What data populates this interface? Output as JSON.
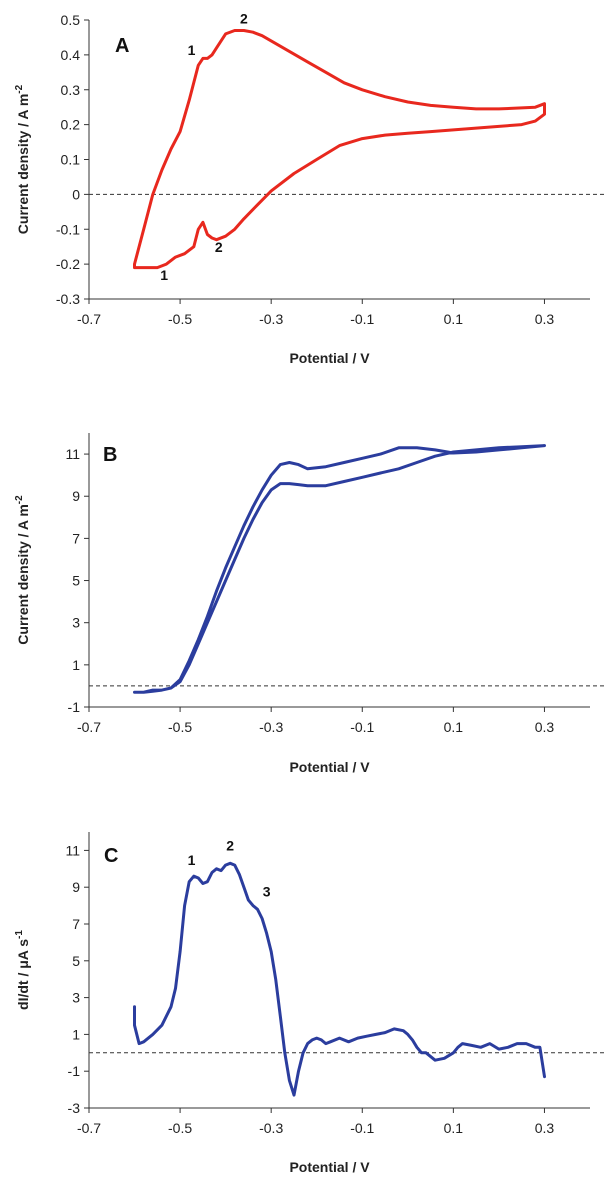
{
  "chart_data": [
    {
      "id": "A",
      "type": "line",
      "panel_label": "A",
      "xlabel": "Potential / V",
      "ylabel": "Current density / A m",
      "ylabel_sup": "-2",
      "xlim": [
        -0.7,
        0.4
      ],
      "ylim": [
        -0.3,
        0.5
      ],
      "xticks": [
        "-0.7",
        "-0.5",
        "-0.3",
        "-0.1",
        "0.1",
        "0.3"
      ],
      "yticks": [
        "0.5",
        "0.4",
        "0.3",
        "0.2",
        "0.1",
        "0",
        "-0.1",
        "-0.2",
        "-0.3"
      ],
      "zero_line": 0,
      "color": "#e8281e",
      "x": [
        -0.6,
        -0.58,
        -0.56,
        -0.54,
        -0.52,
        -0.5,
        -0.48,
        -0.46,
        -0.45,
        -0.44,
        -0.43,
        -0.42,
        -0.4,
        -0.38,
        -0.36,
        -0.34,
        -0.32,
        -0.3,
        -0.26,
        -0.22,
        -0.18,
        -0.14,
        -0.1,
        -0.05,
        0.0,
        0.05,
        0.1,
        0.15,
        0.2,
        0.25,
        0.28,
        0.3,
        0.3,
        0.28,
        0.25,
        0.2,
        0.15,
        0.1,
        0.05,
        0.0,
        -0.05,
        -0.1,
        -0.15,
        -0.2,
        -0.25,
        -0.3,
        -0.33,
        -0.36,
        -0.38,
        -0.4,
        -0.42,
        -0.43,
        -0.44,
        -0.45,
        -0.46,
        -0.47,
        -0.49,
        -0.51,
        -0.53,
        -0.55,
        -0.57,
        -0.59,
        -0.6,
        -0.6
      ],
      "y": [
        -0.2,
        -0.1,
        0.0,
        0.07,
        0.13,
        0.18,
        0.27,
        0.37,
        0.39,
        0.39,
        0.4,
        0.42,
        0.46,
        0.47,
        0.47,
        0.465,
        0.455,
        0.44,
        0.41,
        0.38,
        0.35,
        0.32,
        0.3,
        0.28,
        0.265,
        0.255,
        0.25,
        0.245,
        0.245,
        0.248,
        0.25,
        0.26,
        0.23,
        0.21,
        0.2,
        0.195,
        0.19,
        0.185,
        0.18,
        0.175,
        0.17,
        0.16,
        0.14,
        0.1,
        0.06,
        0.01,
        -0.03,
        -0.07,
        -0.1,
        -0.12,
        -0.13,
        -0.125,
        -0.115,
        -0.08,
        -0.1,
        -0.15,
        -0.17,
        -0.18,
        -0.2,
        -0.21,
        -0.21,
        -0.21,
        -0.21,
        -0.2
      ],
      "annotations": [
        {
          "text": "1",
          "x": -0.475,
          "y": 0.4
        },
        {
          "text": "2",
          "x": -0.36,
          "y": 0.49
        },
        {
          "text": "2",
          "x": -0.415,
          "y": -0.165
        },
        {
          "text": "1",
          "x": -0.535,
          "y": -0.245
        }
      ]
    },
    {
      "id": "B",
      "type": "line",
      "panel_label": "B",
      "xlabel": "Potential / V",
      "ylabel": "Current density / A m",
      "ylabel_sup": "-2",
      "xlim": [
        -0.7,
        0.4
      ],
      "ylim": [
        -1,
        12
      ],
      "xticks": [
        "-0.7",
        "-0.5",
        "-0.3",
        "-0.1",
        "0.1",
        "0.3"
      ],
      "yticks": [
        "11",
        "9",
        "7",
        "5",
        "3",
        "1",
        "-1"
      ],
      "zero_line": 0,
      "color": "#2b3d9e",
      "x": [
        -0.6,
        -0.58,
        -0.56,
        -0.54,
        -0.52,
        -0.5,
        -0.48,
        -0.46,
        -0.44,
        -0.42,
        -0.4,
        -0.38,
        -0.36,
        -0.34,
        -0.32,
        -0.3,
        -0.28,
        -0.26,
        -0.24,
        -0.22,
        -0.18,
        -0.14,
        -0.1,
        -0.06,
        -0.02,
        0.02,
        0.06,
        0.1,
        0.15,
        0.2,
        0.25,
        0.3,
        0.3,
        0.25,
        0.2,
        0.15,
        0.1,
        0.06,
        0.02,
        -0.02,
        -0.06,
        -0.1,
        -0.14,
        -0.18,
        -0.22,
        -0.24,
        -0.26,
        -0.28,
        -0.3,
        -0.32,
        -0.34,
        -0.36,
        -0.38,
        -0.4,
        -0.42,
        -0.44,
        -0.46,
        -0.48,
        -0.5,
        -0.52,
        -0.54,
        -0.56,
        -0.58,
        -0.6
      ],
      "y": [
        -0.3,
        -0.3,
        -0.25,
        -0.2,
        -0.1,
        0.2,
        1.0,
        2.0,
        3.0,
        4.0,
        5.0,
        6.0,
        7.0,
        7.9,
        8.7,
        9.3,
        9.6,
        9.6,
        9.55,
        9.5,
        9.5,
        9.7,
        9.9,
        10.1,
        10.3,
        10.6,
        10.9,
        11.1,
        11.2,
        11.3,
        11.35,
        11.4,
        11.4,
        11.3,
        11.2,
        11.1,
        11.05,
        11.2,
        11.3,
        11.3,
        11.0,
        10.8,
        10.6,
        10.4,
        10.3,
        10.5,
        10.6,
        10.5,
        10.0,
        9.3,
        8.5,
        7.6,
        6.6,
        5.6,
        4.5,
        3.3,
        2.2,
        1.2,
        0.3,
        -0.1,
        -0.2,
        -0.2,
        -0.3,
        -0.3
      ]
    },
    {
      "id": "C",
      "type": "line",
      "panel_label": "C",
      "xlabel": "Potential / V",
      "ylabel": "dI/dt / μA s",
      "ylabel_sup": "-1",
      "xlim": [
        -0.7,
        0.4
      ],
      "ylim": [
        -3,
        12
      ],
      "xticks": [
        "-0.7",
        "-0.5",
        "-0.3",
        "-0.1",
        "0.1",
        "0.3"
      ],
      "yticks": [
        "11",
        "9",
        "7",
        "5",
        "3",
        "1",
        "-1",
        "-3"
      ],
      "zero_line": 0,
      "color": "#2b3d9e",
      "x": [
        -0.6,
        -0.6,
        -0.59,
        -0.58,
        -0.56,
        -0.54,
        -0.52,
        -0.51,
        -0.5,
        -0.49,
        -0.48,
        -0.47,
        -0.46,
        -0.45,
        -0.44,
        -0.43,
        -0.42,
        -0.41,
        -0.4,
        -0.39,
        -0.38,
        -0.37,
        -0.36,
        -0.35,
        -0.34,
        -0.33,
        -0.32,
        -0.31,
        -0.3,
        -0.29,
        -0.28,
        -0.27,
        -0.26,
        -0.25,
        -0.24,
        -0.23,
        -0.22,
        -0.21,
        -0.2,
        -0.19,
        -0.18,
        -0.17,
        -0.15,
        -0.13,
        -0.11,
        -0.09,
        -0.07,
        -0.05,
        -0.03,
        -0.01,
        0.0,
        0.01,
        0.02,
        0.03,
        0.04,
        0.06,
        0.08,
        0.1,
        0.11,
        0.12,
        0.14,
        0.16,
        0.18,
        0.2,
        0.22,
        0.24,
        0.26,
        0.28,
        0.29,
        0.3
      ],
      "y": [
        2.5,
        1.5,
        0.5,
        0.6,
        1.0,
        1.5,
        2.5,
        3.5,
        5.5,
        8.0,
        9.3,
        9.6,
        9.5,
        9.2,
        9.3,
        9.8,
        10.0,
        9.9,
        10.2,
        10.3,
        10.2,
        9.7,
        9.0,
        8.3,
        8.0,
        7.8,
        7.3,
        6.5,
        5.5,
        4.0,
        2.0,
        0.0,
        -1.5,
        -2.3,
        -1.0,
        0.0,
        0.5,
        0.7,
        0.8,
        0.7,
        0.5,
        0.6,
        0.8,
        0.6,
        0.8,
        0.9,
        1.0,
        1.1,
        1.3,
        1.2,
        1.0,
        0.7,
        0.3,
        0.0,
        0.0,
        -0.4,
        -0.3,
        0.0,
        0.3,
        0.5,
        0.4,
        0.3,
        0.5,
        0.2,
        0.3,
        0.5,
        0.5,
        0.3,
        0.3,
        -1.3
      ],
      "annotations": [
        {
          "text": "1",
          "x": -0.475,
          "y": 10.2
        },
        {
          "text": "2",
          "x": -0.39,
          "y": 11.0
        },
        {
          "text": "3",
          "x": -0.31,
          "y": 8.5
        }
      ]
    }
  ]
}
